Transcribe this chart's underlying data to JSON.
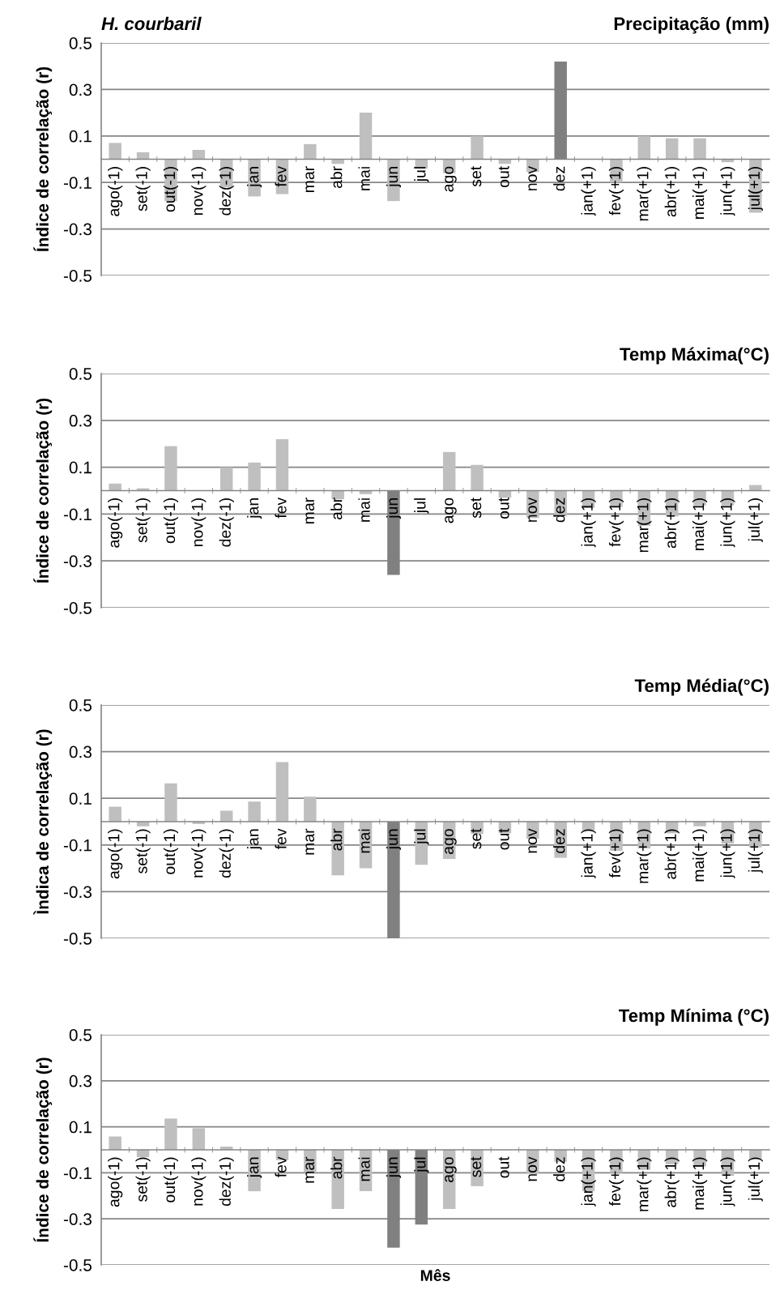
{
  "chart_data": [
    {
      "type": "bar",
      "title": "Precipitação (mm)",
      "subtitle": "H. courbaril",
      "ylabel": "Índice de correlação (r)",
      "categories": [
        "ago(-1)",
        "set(-1)",
        "out(-1)",
        "nov(-1)",
        "dez(-1)",
        "jan",
        "fev",
        "mar",
        "abr",
        "mai",
        "jun",
        "jul",
        "ago",
        "set",
        "out",
        "nov",
        "dez",
        "jan(+1)",
        "fev(+1)",
        "mar(+1)",
        "abr(+1)",
        "mai(+1)",
        "jun(+1)",
        "jul(+1)"
      ],
      "values": [
        0.07,
        0.03,
        -0.18,
        0.04,
        -0.12,
        -0.16,
        -0.15,
        0.065,
        -0.02,
        0.2,
        -0.18,
        -0.04,
        -0.06,
        0.1,
        -0.02,
        -0.055,
        0.42,
        0,
        -0.1,
        0.1,
        0.09,
        0.09,
        -0.013,
        -0.23
      ],
      "colors": [
        "#bfbfbf",
        "#bfbfbf",
        "#bfbfbf",
        "#bfbfbf",
        "#bfbfbf",
        "#bfbfbf",
        "#bfbfbf",
        "#bfbfbf",
        "#bfbfbf",
        "#bfbfbf",
        "#bfbfbf",
        "#bfbfbf",
        "#bfbfbf",
        "#bfbfbf",
        "#bfbfbf",
        "#bfbfbf",
        "#808080",
        "#bfbfbf",
        "#bfbfbf",
        "#bfbfbf",
        "#bfbfbf",
        "#bfbfbf",
        "#bfbfbf",
        "#bfbfbf"
      ],
      "ylim": [
        -0.5,
        0.5
      ],
      "yticks": [
        0.5,
        0.3,
        0.1,
        -0.1,
        -0.3,
        -0.5
      ],
      "grid": "y"
    },
    {
      "type": "bar",
      "title": "Temp Máxima(°C)",
      "ylabel": "Índice de correlação (r)",
      "categories": [
        "ago(-1)",
        "set(-1)",
        "out(-1)",
        "nov(-1)",
        "dez(-1)",
        "jan",
        "fev",
        "mar",
        "abr",
        "mai",
        "jun",
        "jul",
        "ago",
        "set",
        "out",
        "nov",
        "dez",
        "jan(+1)",
        "fev(+1)",
        "mar(+1)",
        "abr(+1)",
        "mai(+1)",
        "jun(+1)",
        "jul(+1)"
      ],
      "values": [
        0.03,
        0.01,
        0.19,
        0,
        0.1,
        0.12,
        0.22,
        0,
        -0.037,
        -0.015,
        -0.36,
        0,
        0.165,
        0.11,
        -0.03,
        -0.117,
        -0.11,
        -0.074,
        -0.07,
        -0.15,
        -0.11,
        -0.063,
        -0.063,
        0.024
      ],
      "colors": [
        "#bfbfbf",
        "#bfbfbf",
        "#bfbfbf",
        "#bfbfbf",
        "#bfbfbf",
        "#bfbfbf",
        "#bfbfbf",
        "#bfbfbf",
        "#bfbfbf",
        "#bfbfbf",
        "#808080",
        "#bfbfbf",
        "#bfbfbf",
        "#bfbfbf",
        "#bfbfbf",
        "#bfbfbf",
        "#bfbfbf",
        "#bfbfbf",
        "#bfbfbf",
        "#bfbfbf",
        "#bfbfbf",
        "#bfbfbf",
        "#bfbfbf",
        "#bfbfbf"
      ],
      "ylim": [
        -0.5,
        0.5
      ],
      "yticks": [
        0.5,
        0.3,
        0.1,
        -0.1,
        -0.3,
        -0.5
      ],
      "grid": "y"
    },
    {
      "type": "bar",
      "title": "Temp Média(°C)",
      "ylabel": "Ìndica de correlação (r)",
      "categories": [
        "ago(-1)",
        "set(-1)",
        "out(-1)",
        "nov(-1)",
        "dez(-1)",
        "jan",
        "fev",
        "mar",
        "abr",
        "mai",
        "jun",
        "jul",
        "ago",
        "set",
        "out",
        "nov",
        "dez",
        "jan(+1)",
        "fev(+1)",
        "mar(+1)",
        "abr(+1)",
        "mai(+1)",
        "jun(+1)",
        "jul(+1)"
      ],
      "values": [
        0.064,
        -0.02,
        0.164,
        -0.01,
        0.047,
        0.086,
        0.255,
        0.107,
        -0.23,
        -0.2,
        -0.5,
        -0.185,
        -0.16,
        -0.053,
        -0.05,
        -0.073,
        -0.155,
        -0.038,
        -0.125,
        -0.115,
        -0.05,
        -0.02,
        -0.094,
        -0.11
      ],
      "colors": [
        "#bfbfbf",
        "#bfbfbf",
        "#bfbfbf",
        "#bfbfbf",
        "#bfbfbf",
        "#bfbfbf",
        "#bfbfbf",
        "#bfbfbf",
        "#bfbfbf",
        "#bfbfbf",
        "#808080",
        "#bfbfbf",
        "#bfbfbf",
        "#bfbfbf",
        "#bfbfbf",
        "#bfbfbf",
        "#bfbfbf",
        "#bfbfbf",
        "#bfbfbf",
        "#bfbfbf",
        "#bfbfbf",
        "#bfbfbf",
        "#bfbfbf",
        "#bfbfbf"
      ],
      "ylim": [
        -0.5,
        0.5
      ],
      "yticks": [
        0.5,
        0.3,
        0.1,
        -0.1,
        -0.3,
        -0.5
      ],
      "grid": "y"
    },
    {
      "type": "bar",
      "title": "Temp Mínima (°C)",
      "ylabel": "Índice de correlação (r)",
      "xlabel": "Mês",
      "categories": [
        "ago(-1)",
        "set(-1)",
        "out(-1)",
        "nov(-1)",
        "dez(-1)",
        "jan",
        "fev",
        "mar",
        "abr",
        "mai",
        "jun",
        "jul",
        "ago",
        "set",
        "out",
        "nov",
        "dez",
        "jan(+1)",
        "fev(+1)",
        "mar(+1)",
        "abr(+1)",
        "mai(+1)",
        "jun(+1)",
        "jul(+1)"
      ],
      "values": [
        0.058,
        -0.032,
        0.136,
        0.094,
        0.014,
        -0.18,
        -0.045,
        -0.096,
        -0.257,
        -0.18,
        -0.425,
        -0.325,
        -0.257,
        -0.158,
        0,
        -0.105,
        -0.052,
        -0.18,
        -0.1,
        -0.087,
        -0.063,
        -0.072,
        -0.113,
        -0.039
      ],
      "colors": [
        "#bfbfbf",
        "#bfbfbf",
        "#bfbfbf",
        "#bfbfbf",
        "#bfbfbf",
        "#bfbfbf",
        "#bfbfbf",
        "#bfbfbf",
        "#bfbfbf",
        "#bfbfbf",
        "#808080",
        "#808080",
        "#bfbfbf",
        "#bfbfbf",
        "#bfbfbf",
        "#bfbfbf",
        "#bfbfbf",
        "#bfbfbf",
        "#bfbfbf",
        "#bfbfbf",
        "#bfbfbf",
        "#bfbfbf",
        "#bfbfbf",
        "#bfbfbf"
      ],
      "ylim": [
        -0.5,
        0.5
      ],
      "yticks": [
        0.5,
        0.3,
        0.1,
        -0.1,
        -0.3,
        -0.5
      ],
      "grid": "y"
    }
  ]
}
